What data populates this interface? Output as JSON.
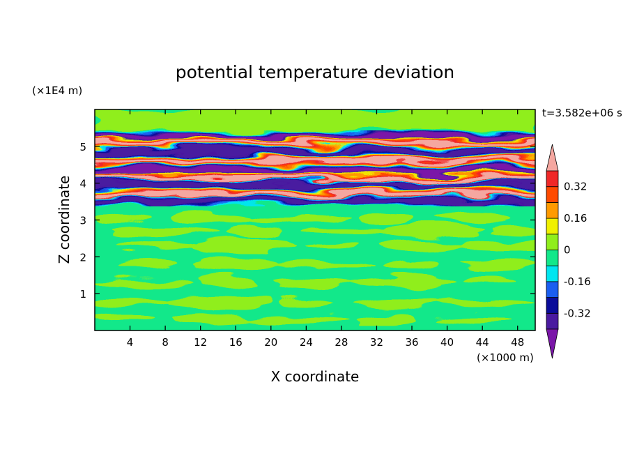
{
  "chart_data": {
    "type": "heatmap",
    "title": "potential temperature deviation",
    "xlabel": "X coordinate",
    "ylabel": "Z coordinate",
    "x_unit_label": "(×1000 m)",
    "y_unit_label": "(×1E4 m)",
    "time_label": "t=3.582e+06 s",
    "xlim": [
      0,
      50
    ],
    "ylim": [
      0,
      6
    ],
    "x_ticks": [
      4,
      8,
      12,
      16,
      20,
      24,
      28,
      32,
      36,
      40,
      44,
      48
    ],
    "y_ticks": [
      1,
      2,
      3,
      4,
      5
    ],
    "colorbar": {
      "levels": [
        -0.48,
        -0.4,
        -0.32,
        -0.24,
        -0.16,
        -0.08,
        0,
        0.08,
        0.16,
        0.24,
        0.32,
        0.4
      ],
      "colors": [
        "#7a16a8",
        "#4a1aa0",
        "#0a0c9a",
        "#1a5ef0",
        "#00e6f0",
        "#12e88a",
        "#90ee1c",
        "#f0f000",
        "#ff9a00",
        "#ff4a00",
        "#f02828",
        "#f5a7a0"
      ],
      "tick_labels": [
        "0.32",
        "0.16",
        "0",
        "-0.16",
        "-0.32"
      ],
      "tick_values": [
        0.32,
        0.16,
        0,
        -0.16,
        -0.32
      ]
    },
    "bands": [
      {
        "z": 5.3,
        "value": -0.45
      },
      {
        "z": 5.1,
        "value": 0.45
      },
      {
        "z": 4.85,
        "value": -0.4
      },
      {
        "z": 4.6,
        "value": 0.45
      },
      {
        "z": 4.35,
        "value": -0.45
      },
      {
        "z": 4.15,
        "value": 0.4
      },
      {
        "z": 3.95,
        "value": -0.35
      },
      {
        "z": 3.7,
        "value": 0.45
      },
      {
        "z": 3.5,
        "value": -0.4
      }
    ]
  }
}
